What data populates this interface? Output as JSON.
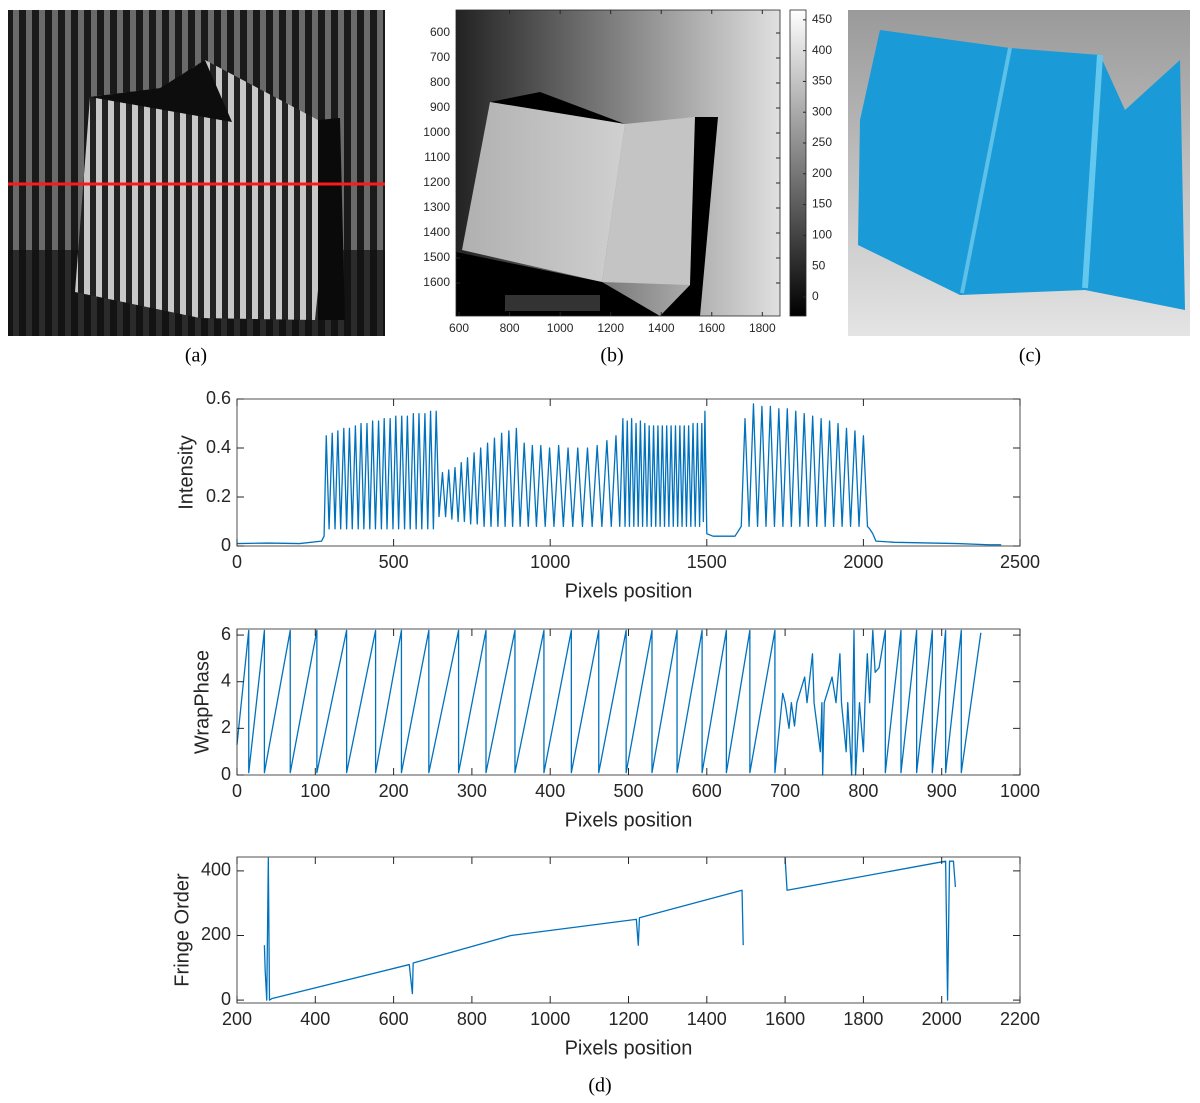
{
  "captions": [
    "(a)",
    "(b)",
    "(c)",
    "(d)"
  ],
  "chart_data": [
    {
      "type": "image",
      "xlim": [
        588,
        1870
      ],
      "xticks": [
        600,
        800,
        1000,
        1200,
        1400,
        1600,
        1800
      ],
      "ylim": [
        508,
        1732
      ],
      "y_reversed": true,
      "yticks": [
        600,
        700,
        800,
        900,
        1000,
        1100,
        1200,
        1300,
        1400,
        1500,
        1600
      ],
      "colorbar": {
        "lim": [
          -31,
          466
        ],
        "ticks": [
          0,
          50,
          100,
          150,
          200,
          250,
          300,
          350,
          400,
          450
        ],
        "colormap": [
          "#000000",
          "#ffffff"
        ]
      }
    },
    {
      "type": "line",
      "xlabel": "Pixels position",
      "ylabel": "Intensity",
      "xlim": [
        0,
        2500
      ],
      "xticks": [
        0,
        500,
        1000,
        1500,
        2000,
        2500
      ],
      "ylim": [
        0,
        0.6
      ],
      "yticks": [
        0,
        0.2,
        0.4,
        0.6
      ],
      "x": [
        0,
        100,
        200,
        270,
        278,
        285,
        294,
        304,
        313,
        322,
        331,
        341,
        350,
        359,
        368,
        378,
        387,
        396,
        405,
        415,
        424,
        433,
        442,
        452,
        461,
        470,
        479,
        489,
        498,
        507,
        516,
        526,
        535,
        544,
        553,
        563,
        572,
        581,
        590,
        600,
        609,
        618,
        627,
        636,
        645,
        656,
        666,
        676,
        686,
        696,
        706,
        716,
        726,
        736,
        746,
        757,
        767,
        778,
        789,
        800,
        811,
        822,
        833,
        845,
        856,
        868,
        880,
        892,
        904,
        917,
        930,
        943,
        956,
        970,
        984,
        998,
        1012,
        1027,
        1042,
        1057,
        1072,
        1088,
        1103,
        1119,
        1134,
        1150,
        1165,
        1181,
        1195,
        1210,
        1222,
        1232,
        1239,
        1246,
        1253,
        1260,
        1267,
        1274,
        1281,
        1288,
        1295,
        1302,
        1309,
        1316,
        1323,
        1330,
        1337,
        1344,
        1351,
        1358,
        1365,
        1372,
        1379,
        1386,
        1393,
        1400,
        1407,
        1414,
        1421,
        1428,
        1435,
        1442,
        1449,
        1456,
        1463,
        1470,
        1477,
        1484,
        1489,
        1494,
        1500,
        1520,
        1590,
        1600,
        1610,
        1622,
        1635,
        1649,
        1662,
        1676,
        1689,
        1703,
        1716,
        1730,
        1743,
        1757,
        1770,
        1784,
        1797,
        1811,
        1824,
        1838,
        1851,
        1865,
        1878,
        1892,
        1905,
        1919,
        1932,
        1946,
        1959,
        1973,
        1986,
        2000,
        2013,
        2020,
        2030,
        2040,
        2100,
        2300,
        2400,
        2440
      ],
      "series": [
        {
          "color": "#0072bd",
          "values": [
            0.01,
            0.012,
            0.01,
            0.02,
            0.04,
            0.45,
            0.07,
            0.46,
            0.07,
            0.47,
            0.07,
            0.48,
            0.07,
            0.48,
            0.07,
            0.49,
            0.07,
            0.5,
            0.07,
            0.5,
            0.07,
            0.51,
            0.07,
            0.51,
            0.07,
            0.52,
            0.07,
            0.52,
            0.07,
            0.53,
            0.07,
            0.53,
            0.07,
            0.53,
            0.07,
            0.54,
            0.07,
            0.54,
            0.07,
            0.54,
            0.07,
            0.55,
            0.07,
            0.55,
            0.12,
            0.3,
            0.12,
            0.31,
            0.11,
            0.32,
            0.1,
            0.34,
            0.1,
            0.36,
            0.09,
            0.38,
            0.09,
            0.4,
            0.08,
            0.42,
            0.08,
            0.44,
            0.08,
            0.46,
            0.08,
            0.47,
            0.08,
            0.48,
            0.08,
            0.42,
            0.08,
            0.41,
            0.08,
            0.41,
            0.08,
            0.4,
            0.08,
            0.41,
            0.08,
            0.4,
            0.08,
            0.4,
            0.08,
            0.4,
            0.08,
            0.41,
            0.08,
            0.43,
            0.08,
            0.45,
            0.08,
            0.52,
            0.08,
            0.51,
            0.08,
            0.52,
            0.08,
            0.5,
            0.08,
            0.51,
            0.08,
            0.5,
            0.08,
            0.49,
            0.08,
            0.49,
            0.08,
            0.49,
            0.08,
            0.49,
            0.08,
            0.49,
            0.08,
            0.49,
            0.08,
            0.49,
            0.08,
            0.49,
            0.08,
            0.49,
            0.08,
            0.49,
            0.08,
            0.5,
            0.08,
            0.5,
            0.08,
            0.5,
            0.1,
            0.55,
            0.05,
            0.04,
            0.04,
            0.06,
            0.08,
            0.52,
            0.08,
            0.58,
            0.08,
            0.57,
            0.08,
            0.57,
            0.08,
            0.56,
            0.08,
            0.56,
            0.08,
            0.55,
            0.08,
            0.54,
            0.08,
            0.53,
            0.08,
            0.52,
            0.08,
            0.51,
            0.08,
            0.5,
            0.08,
            0.48,
            0.08,
            0.47,
            0.08,
            0.45,
            0.08,
            0.07,
            0.05,
            0.02,
            0.015,
            0.01,
            0.005,
            0.005
          ]
        }
      ]
    },
    {
      "type": "line",
      "xlabel": "Pixels position",
      "ylabel": "WrapPhase",
      "xlim": [
        0,
        1000
      ],
      "xticks": [
        0,
        100,
        200,
        300,
        400,
        500,
        600,
        700,
        800,
        900,
        1000
      ],
      "ylim": [
        0,
        6.26
      ],
      "yticks": [
        0,
        2,
        4,
        6
      ],
      "x": [
        0,
        15,
        15,
        35,
        35,
        68,
        68,
        102,
        102,
        140,
        140,
        177,
        177,
        210,
        210,
        245,
        245,
        283,
        283,
        318,
        318,
        355,
        355,
        392,
        392,
        427,
        427,
        462,
        462,
        497,
        497,
        530,
        530,
        562,
        562,
        594,
        594,
        625,
        625,
        655,
        655,
        687,
        687,
        697,
        700,
        705,
        708,
        712,
        715,
        725,
        728,
        735,
        737,
        745,
        747,
        748,
        750,
        760,
        765,
        770,
        772,
        778,
        780,
        785,
        788,
        790,
        795,
        800,
        802,
        805,
        808,
        810,
        812,
        815,
        820,
        828,
        828,
        848,
        848,
        868,
        868,
        888,
        888,
        905,
        905,
        925,
        925,
        950
      ],
      "series": [
        {
          "color": "#0072bd",
          "values": [
            1.3,
            6.2,
            0.1,
            6.2,
            0.1,
            6.2,
            0.1,
            6.2,
            0.1,
            6.2,
            0.1,
            6.2,
            0.1,
            6.2,
            0.1,
            6.2,
            0.1,
            6.2,
            0.1,
            6.2,
            0.1,
            6.2,
            0.1,
            6.2,
            0.1,
            6.2,
            0.1,
            6.2,
            0.1,
            6.2,
            0.1,
            6.2,
            0.1,
            6.2,
            0.1,
            6.2,
            0.1,
            6.2,
            0.1,
            6.2,
            0.1,
            6.2,
            0.1,
            3.5,
            3.1,
            2,
            3.1,
            2.1,
            3.1,
            4.2,
            3.1,
            5.2,
            3.1,
            1,
            3.1,
            0,
            3.1,
            4.2,
            3.1,
            5.2,
            3.1,
            1,
            3.1,
            0,
            6.2,
            0,
            3.1,
            1,
            3.1,
            5.2,
            3.1,
            4.8,
            6.2,
            4.4,
            4.6,
            6.2,
            0.1,
            6.2,
            0.1,
            6.2,
            0.1,
            6.2,
            0.1,
            6.2,
            0.1,
            6.2,
            0.1,
            6.1
          ]
        }
      ]
    },
    {
      "type": "line",
      "xlabel": "Pixels position",
      "ylabel": "Fringe Order",
      "xlim": [
        200,
        2200
      ],
      "xticks": [
        200,
        400,
        600,
        800,
        1000,
        1200,
        1400,
        1600,
        1800,
        2000,
        2200
      ],
      "ylim": [
        -9,
        443
      ],
      "yticks": [
        0,
        200,
        400
      ],
      "x": [
        270,
        272,
        276,
        280,
        283,
        290,
        640,
        648,
        650,
        900,
        1220,
        1225,
        1228,
        1490,
        1493,
        1550,
        1600,
        1605,
        2010,
        2015,
        2020,
        2030,
        2035
      ],
      "series": [
        {
          "color": "#0072bd",
          "values": [
            170,
            90,
            0,
            440,
            0,
            5,
            110,
            20,
            115,
            200,
            250,
            170,
            255,
            340,
            170,
            null,
            440,
            340,
            430,
            0,
            430,
            430,
            350
          ]
        }
      ]
    }
  ]
}
